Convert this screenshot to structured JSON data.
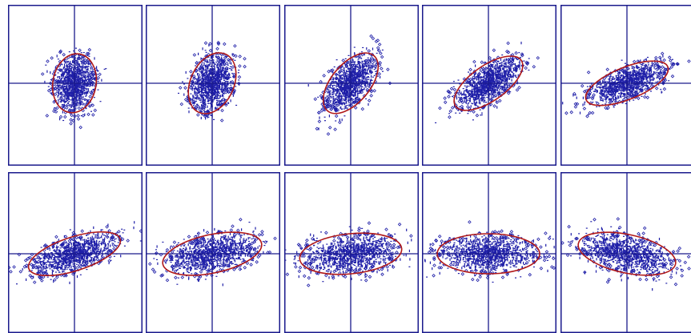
{
  "chart_data": {
    "type": "scatter",
    "title": "",
    "grid": false,
    "axis_ranges": {
      "x": [
        -4,
        4
      ],
      "y": [
        -4,
        4
      ]
    },
    "colors": {
      "points": "#1f1fa8",
      "ellipse": "#b01818",
      "frame": "#1a1a8c",
      "axes": "#1a1a8c",
      "panel_background": "#ffffff"
    },
    "points_per_panel": 1200,
    "panels": [
      {
        "row": 0,
        "col": 0,
        "ellipse": {
          "center": [
            0,
            0
          ],
          "semi_axes": [
            1.85,
            1.35
          ],
          "angle_deg": 80
        }
      },
      {
        "row": 0,
        "col": 1,
        "ellipse": {
          "center": [
            0,
            0
          ],
          "semi_axes": [
            2.0,
            1.35
          ],
          "angle_deg": 65
        }
      },
      {
        "row": 0,
        "col": 2,
        "ellipse": {
          "center": [
            0,
            0
          ],
          "semi_axes": [
            2.25,
            1.2
          ],
          "angle_deg": 50
        }
      },
      {
        "row": 0,
        "col": 3,
        "ellipse": {
          "center": [
            0,
            0
          ],
          "semi_axes": [
            2.5,
            1.1
          ],
          "angle_deg": 35
        }
      },
      {
        "row": 0,
        "col": 4,
        "ellipse": {
          "center": [
            0,
            0
          ],
          "semi_axes": [
            2.75,
            1.0
          ],
          "angle_deg": 22
        }
      },
      {
        "row": 1,
        "col": 0,
        "ellipse": {
          "center": [
            0,
            0
          ],
          "semi_axes": [
            3.0,
            1.05
          ],
          "angle_deg": 18
        }
      },
      {
        "row": 1,
        "col": 1,
        "ellipse": {
          "center": [
            0,
            0
          ],
          "semi_axes": [
            3.15,
            1.2
          ],
          "angle_deg": 12
        }
      },
      {
        "row": 1,
        "col": 2,
        "ellipse": {
          "center": [
            0,
            0
          ],
          "semi_axes": [
            3.2,
            1.25
          ],
          "angle_deg": 6
        }
      },
      {
        "row": 1,
        "col": 3,
        "ellipse": {
          "center": [
            0,
            0
          ],
          "semi_axes": [
            3.2,
            1.25
          ],
          "angle_deg": 0
        }
      },
      {
        "row": 1,
        "col": 4,
        "ellipse": {
          "center": [
            0,
            0
          ],
          "semi_axes": [
            3.1,
            1.2
          ],
          "angle_deg": -12
        }
      }
    ]
  }
}
